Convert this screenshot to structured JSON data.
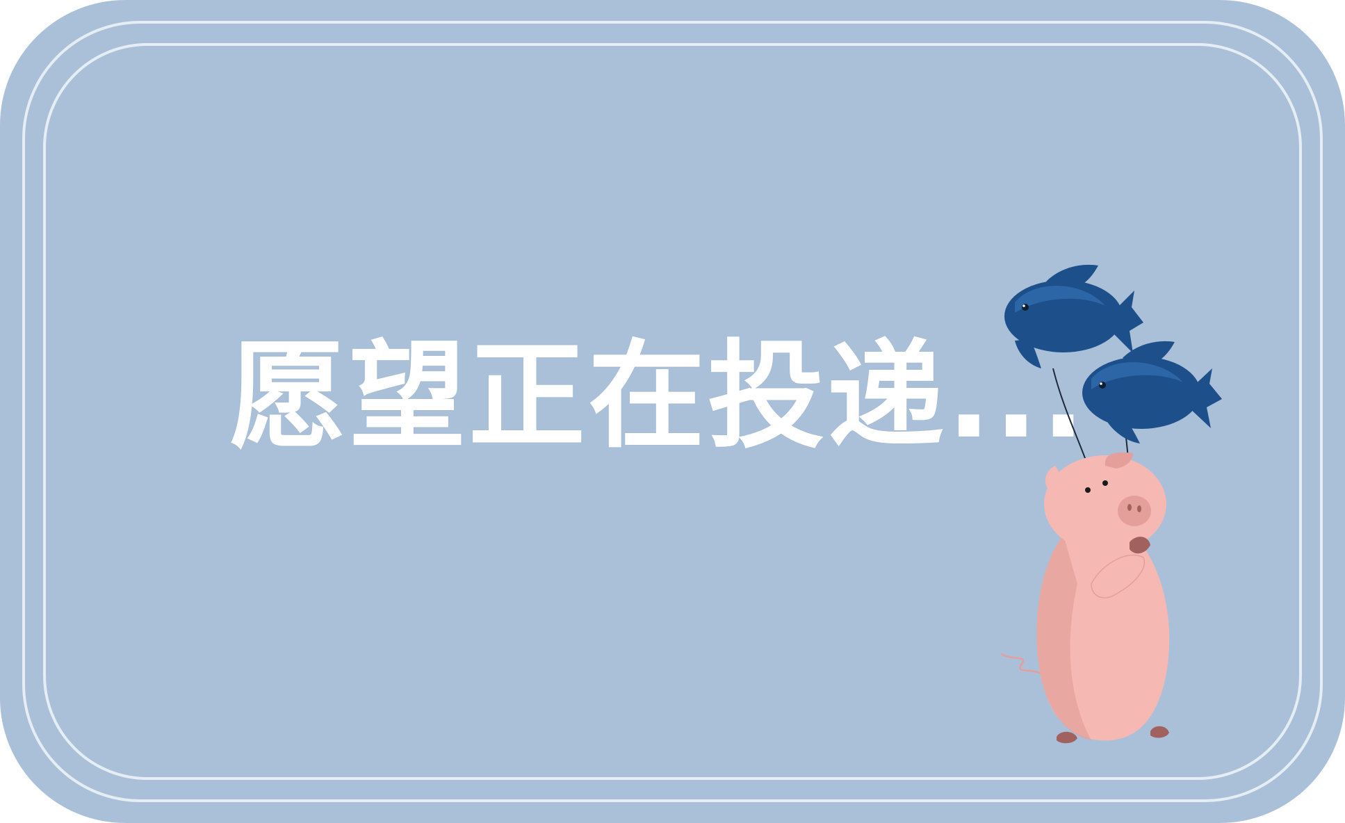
{
  "message": "愿望正在投递...",
  "colors": {
    "background": "#aac0d8",
    "frame_line": "#e6edf5",
    "text": "#ffffff",
    "pig_body": "#f6b8b2",
    "pig_shadow": "#e49f9b",
    "pig_hoof": "#a0615f",
    "fish_dark": "#1d4f8a",
    "fish_light": "#3b7ac0"
  },
  "icons": {
    "pig": "pig-icon",
    "fish_balloon": "fish-balloon-icon"
  }
}
